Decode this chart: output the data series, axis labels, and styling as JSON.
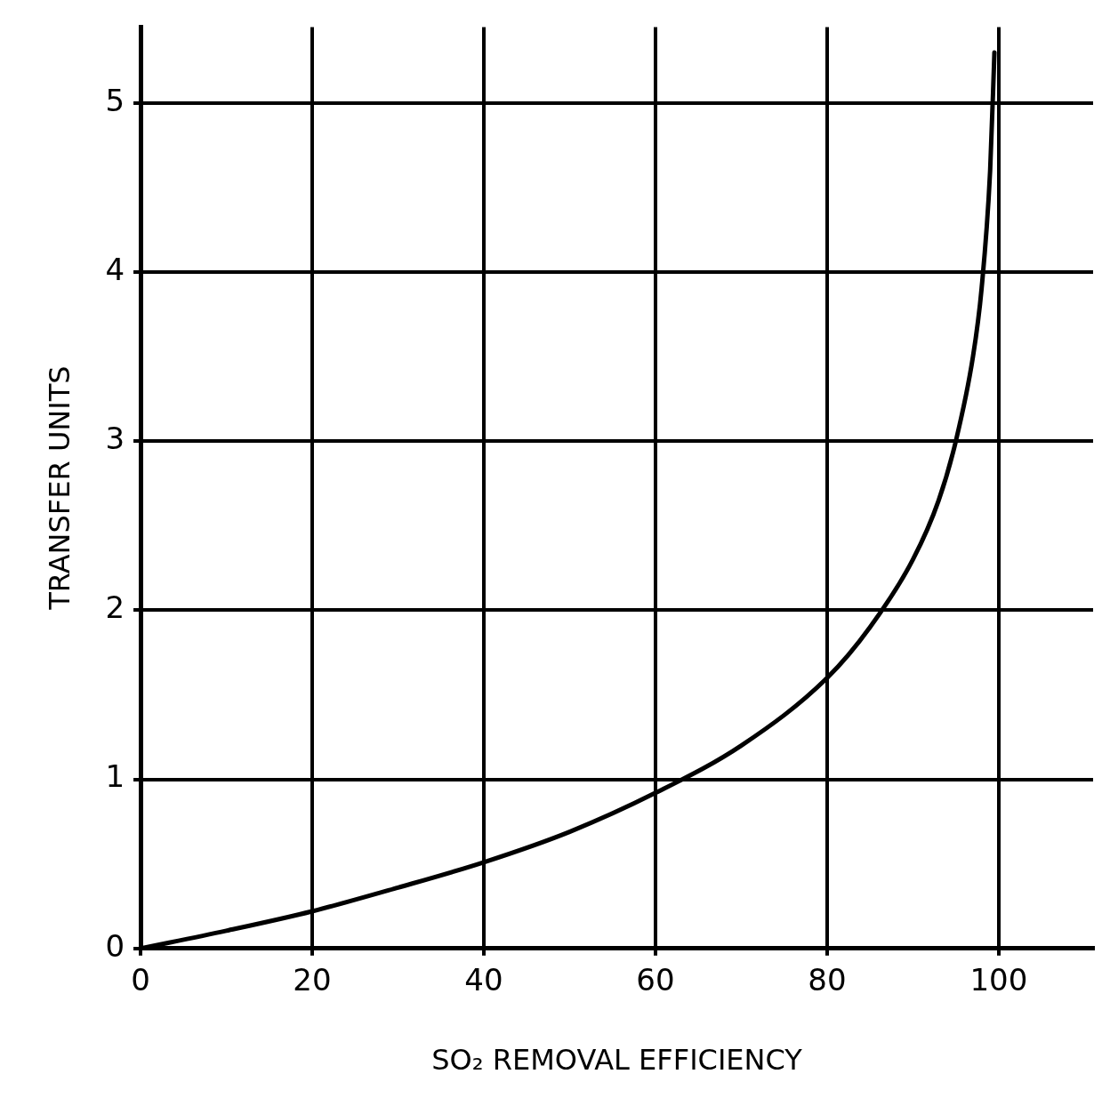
{
  "chart_data": {
    "type": "line",
    "xlabel": "SO₂ REMOVAL EFFICIENCY",
    "ylabel": "TRANSFER UNITS",
    "x": [
      0,
      10,
      20,
      30,
      40,
      50,
      60,
      70,
      80,
      85,
      90,
      93,
      95,
      97,
      98,
      99,
      99.5
    ],
    "series": [
      {
        "color": "#000000",
        "values": [
          0,
          0.105,
          0.22,
          0.36,
          0.51,
          0.69,
          0.92,
          1.2,
          1.6,
          1.9,
          2.3,
          2.65,
          3.0,
          3.5,
          3.9,
          4.6,
          5.3
        ]
      }
    ],
    "xlim": [
      0,
      111
    ],
    "ylim": [
      0,
      5.45
    ],
    "xticks": [
      0,
      20,
      40,
      60,
      80,
      100
    ],
    "yticks": [
      0,
      1,
      2,
      3,
      4,
      5
    ],
    "grid": true,
    "legend": false,
    "marker": "none",
    "line_style": "solid"
  }
}
